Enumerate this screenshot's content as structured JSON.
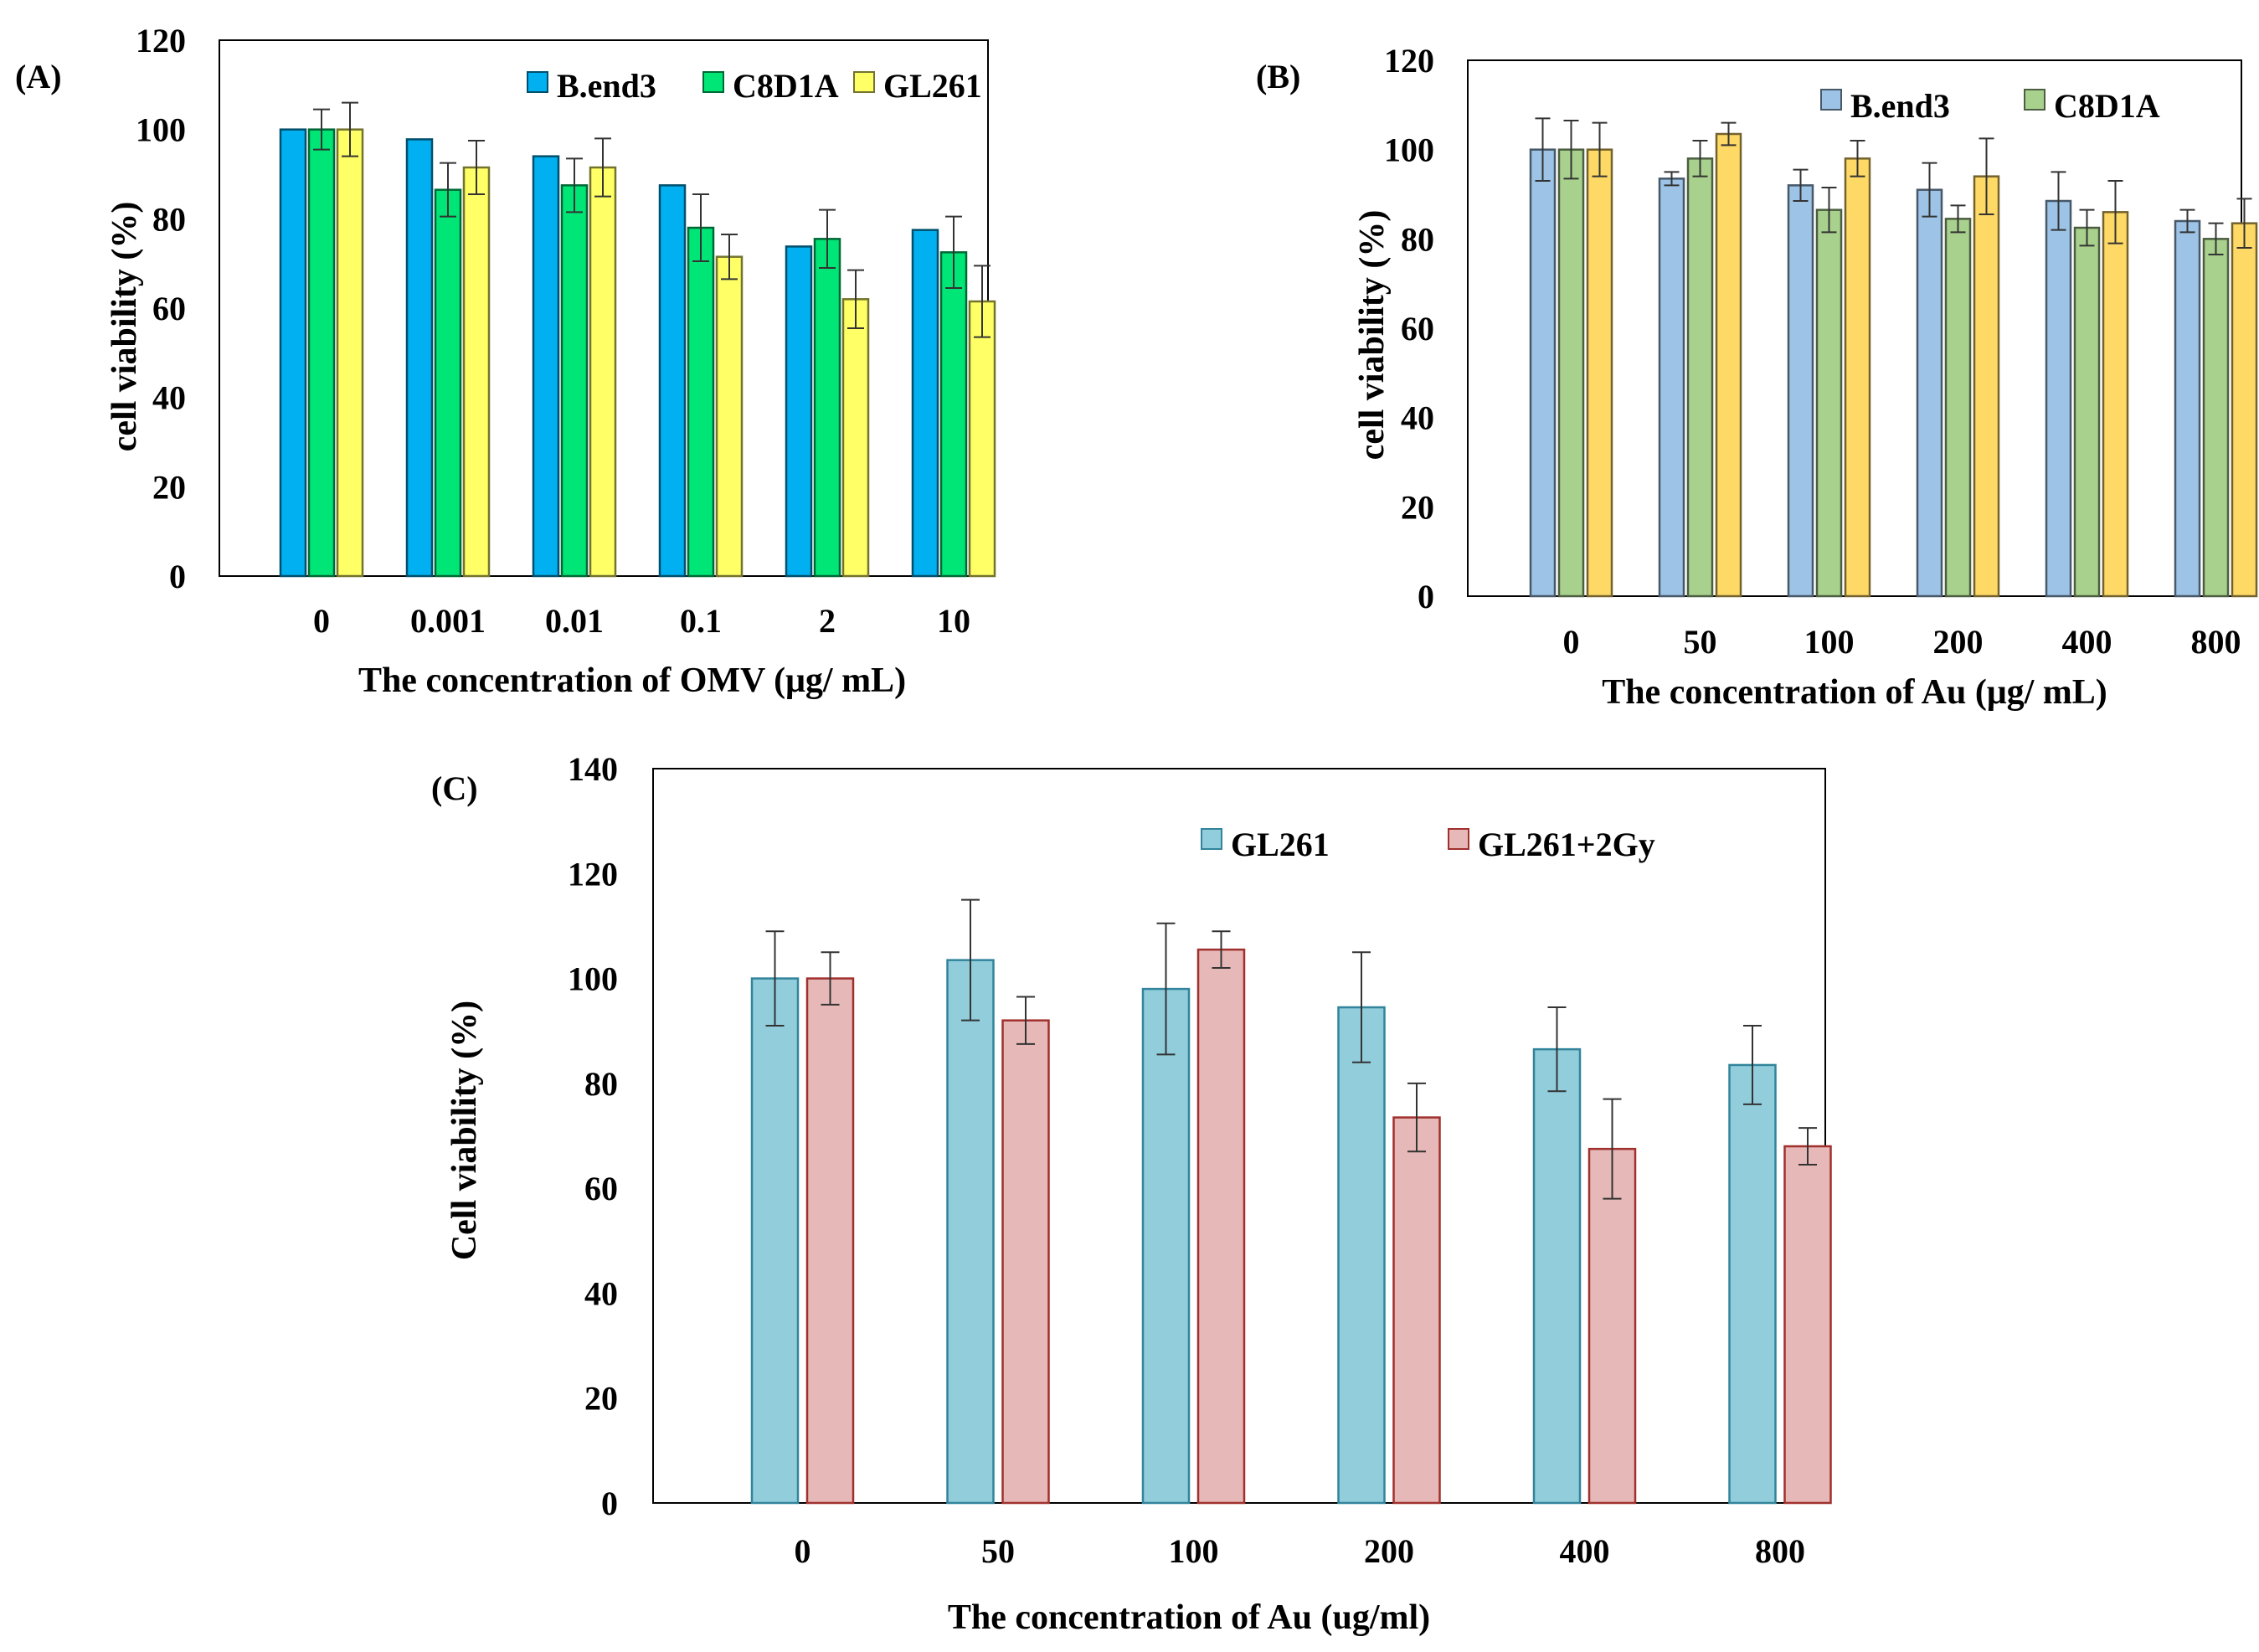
{
  "chart_data": [
    {
      "panel_label": "(A)",
      "type": "bar",
      "categories": [
        "0",
        "0.001",
        "0.01",
        "0.1",
        "2",
        "10"
      ],
      "series": [
        {
          "name": "B.end3",
          "color": "#00B0F0",
          "values": [
            100,
            97.8,
            94,
            87.5,
            73.8,
            77.5
          ],
          "errors": [
            0,
            0,
            0,
            0,
            0,
            0
          ]
        },
        {
          "name": "C8D1A",
          "color": "#00E676",
          "values": [
            100,
            86.5,
            87.5,
            78,
            75.5,
            72.5
          ],
          "errors": [
            4.5,
            6,
            6,
            7.5,
            6.5,
            8
          ]
        },
        {
          "name": "GL261",
          "color": "#FFFF66",
          "values": [
            100,
            91.5,
            91.5,
            71.5,
            62,
            61.5
          ],
          "errors": [
            6,
            6,
            6.5,
            5,
            6.5,
            8
          ]
        }
      ],
      "title": "",
      "xlabel": "The concentration of OMV (μg/ mL)",
      "ylabel": "cell viability (%)",
      "ylim": [
        0,
        120
      ],
      "yticks": [
        "0",
        "20",
        "40",
        "60",
        "80",
        "100",
        "120"
      ],
      "grid": false,
      "legend": "top-right"
    },
    {
      "panel_label": "(B)",
      "type": "bar",
      "categories": [
        "0",
        "50",
        "100",
        "200",
        "400",
        "800"
      ],
      "series": [
        {
          "name": "B.end3",
          "color": "#9DC3E6",
          "values": [
            100,
            93.5,
            92,
            91,
            88.5,
            84
          ],
          "errors": [
            7,
            1.5,
            3.5,
            6,
            6.5,
            2.5
          ]
        },
        {
          "name": "C8D1A",
          "color": "#A9D18E",
          "values": [
            100,
            98,
            86.5,
            84.5,
            82.5,
            80
          ],
          "errors": [
            6.5,
            4,
            5,
            3,
            4,
            3.5
          ]
        },
        {
          "name": "",
          "color": "#FFD966",
          "values": [
            100,
            103.5,
            98,
            94,
            86,
            83.5
          ],
          "errors": [
            6,
            2.5,
            4,
            8.5,
            7,
            5.5
          ]
        }
      ],
      "title": "",
      "xlabel": "The concentration of Au (μg/ mL)",
      "ylabel": "cell viability (%)",
      "ylim": [
        0,
        120
      ],
      "yticks": [
        "0",
        "20",
        "40",
        "60",
        "80",
        "100",
        "120"
      ],
      "grid": false,
      "legend": "top-right"
    },
    {
      "panel_label": "(C)",
      "type": "bar",
      "categories": [
        "0",
        "50",
        "100",
        "200",
        "400",
        "800"
      ],
      "series": [
        {
          "name": "GL261",
          "color": "#92CDDC",
          "stroke": "#31849B",
          "values": [
            100,
            103.5,
            98,
            94.5,
            86.5,
            83.5
          ],
          "errors": [
            9,
            11.5,
            12.5,
            10.5,
            8,
            7.5
          ]
        },
        {
          "name": "GL261+2Gy",
          "color": "#E6B8B7",
          "stroke": "#A0302D",
          "values": [
            100,
            92,
            105.5,
            73.5,
            67.5,
            68
          ],
          "errors": [
            5,
            4.5,
            3.5,
            6.5,
            9.5,
            3.5
          ]
        }
      ],
      "title": "",
      "xlabel": "The concentration of Au (ug/ml)",
      "ylabel": "Cell viability (%)",
      "ylim": [
        0,
        140
      ],
      "yticks": [
        "0",
        "20",
        "40",
        "60",
        "80",
        "100",
        "120",
        "140"
      ],
      "grid": false,
      "legend": "top-center"
    }
  ]
}
